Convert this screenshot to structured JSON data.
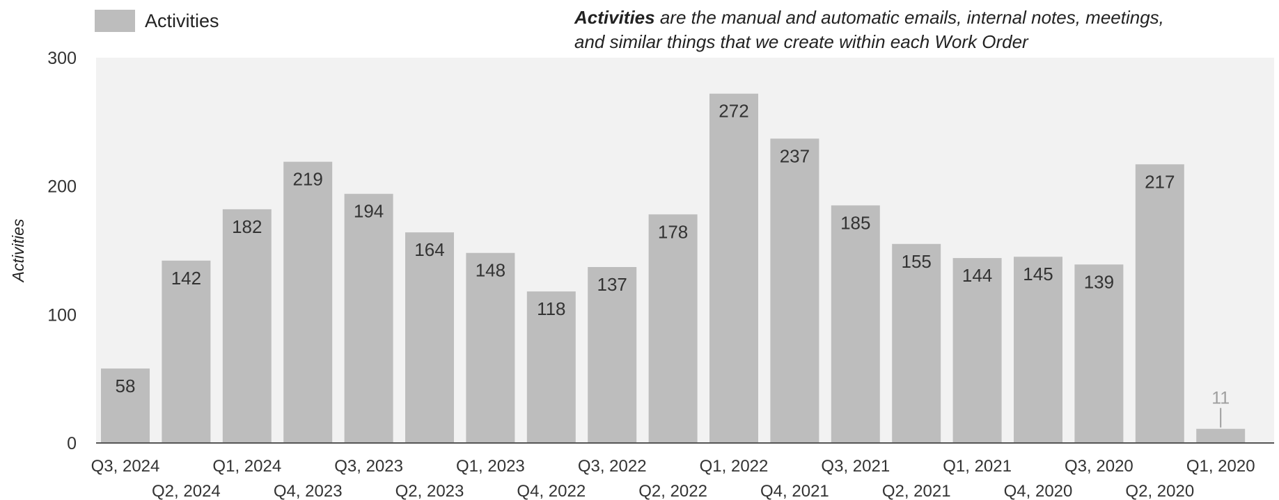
{
  "legend": {
    "label": "Activities",
    "color": "#bdbdbd"
  },
  "note": {
    "lead": "Activities",
    "line1_rest": " are the manual and automatic emails, internal notes, meetings,",
    "line2": "and similar things that we create within each Work Order"
  },
  "chart_data": {
    "type": "bar",
    "categories": [
      "Q3, 2024",
      "Q2, 2024",
      "Q1, 2024",
      "Q4, 2023",
      "Q3, 2023",
      "Q2, 2023",
      "Q1, 2023",
      "Q4, 2022",
      "Q3, 2022",
      "Q2, 2022",
      "Q1, 2022",
      "Q4, 2021",
      "Q3, 2021",
      "Q2, 2021",
      "Q1, 2021",
      "Q4, 2020",
      "Q3, 2020",
      "Q2, 2020",
      "Q1, 2020"
    ],
    "series": [
      {
        "name": "Activities",
        "values": [
          58,
          142,
          182,
          219,
          194,
          164,
          148,
          118,
          137,
          178,
          272,
          237,
          185,
          155,
          144,
          145,
          139,
          217,
          11
        ]
      }
    ],
    "ylabel": "Activities",
    "ylim": [
      0,
      300
    ],
    "yticks": [
      0,
      100,
      200,
      300
    ],
    "grid": false,
    "legend_position": "top-left",
    "bar_color": "#bdbdbd",
    "plot_background": "#f2f2f2"
  }
}
